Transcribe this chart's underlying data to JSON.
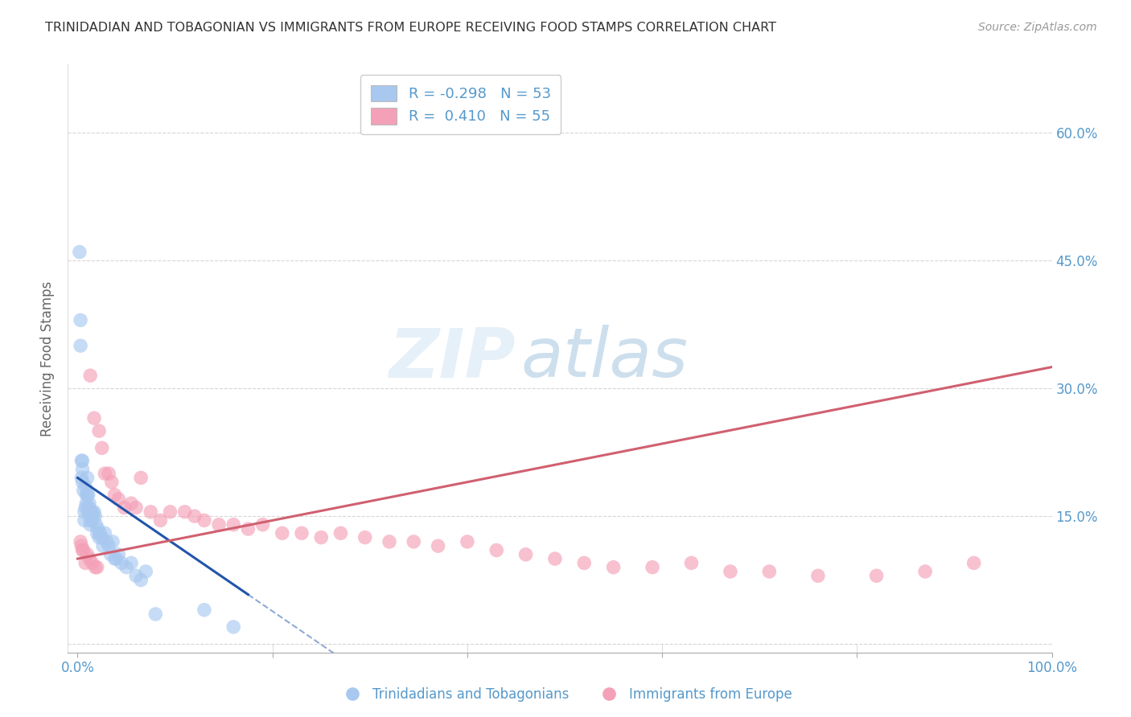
{
  "title": "TRINIDADIAN AND TOBAGONIAN VS IMMIGRANTS FROM EUROPE RECEIVING FOOD STAMPS CORRELATION CHART",
  "source": "Source: ZipAtlas.com",
  "ylabel": "Receiving Food Stamps",
  "legend_label1": "Trinidadians and Tobagonians",
  "legend_label2": "Immigrants from Europe",
  "R1": -0.298,
  "N1": 53,
  "R2": 0.41,
  "N2": 55,
  "xlim": [
    -0.01,
    1.0
  ],
  "ylim": [
    -0.01,
    0.68
  ],
  "xtick_positions": [
    0.0,
    0.2,
    0.4,
    0.6,
    0.8,
    1.0
  ],
  "xtick_labels_show": [
    "0.0%",
    "",
    "",
    "",
    "",
    "100.0%"
  ],
  "ytick_positions": [
    0.0,
    0.15,
    0.3,
    0.45,
    0.6
  ],
  "ytick_labels": [
    "",
    "15.0%",
    "30.0%",
    "45.0%",
    "60.0%"
  ],
  "grid_color": "#cccccc",
  "background_color": "#ffffff",
  "color_blue": "#a8c8f0",
  "color_pink": "#f4a0b8",
  "line_color_blue": "#2255aa",
  "line_color_pink": "#d06070",
  "title_color": "#333333",
  "axis_tick_color": "#5599cc",
  "watermark_zip": "ZIP",
  "watermark_atlas": "atlas",
  "blue_scatter_x": [
    0.002,
    0.003,
    0.003,
    0.004,
    0.004,
    0.005,
    0.005,
    0.005,
    0.006,
    0.007,
    0.007,
    0.008,
    0.008,
    0.009,
    0.009,
    0.01,
    0.01,
    0.011,
    0.011,
    0.012,
    0.012,
    0.013,
    0.013,
    0.014,
    0.015,
    0.015,
    0.016,
    0.017,
    0.018,
    0.019,
    0.02,
    0.021,
    0.022,
    0.023,
    0.025,
    0.026,
    0.028,
    0.03,
    0.032,
    0.034,
    0.036,
    0.038,
    0.04,
    0.042,
    0.045,
    0.05,
    0.055,
    0.06,
    0.065,
    0.07,
    0.08,
    0.13,
    0.16
  ],
  "blue_scatter_y": [
    0.46,
    0.38,
    0.35,
    0.215,
    0.195,
    0.205,
    0.215,
    0.19,
    0.18,
    0.145,
    0.155,
    0.16,
    0.185,
    0.175,
    0.165,
    0.195,
    0.175,
    0.155,
    0.175,
    0.16,
    0.165,
    0.145,
    0.14,
    0.155,
    0.155,
    0.145,
    0.15,
    0.155,
    0.15,
    0.14,
    0.13,
    0.135,
    0.125,
    0.13,
    0.125,
    0.115,
    0.13,
    0.12,
    0.115,
    0.105,
    0.12,
    0.1,
    0.1,
    0.105,
    0.095,
    0.09,
    0.095,
    0.08,
    0.075,
    0.085,
    0.035,
    0.04,
    0.02
  ],
  "pink_scatter_x": [
    0.003,
    0.004,
    0.005,
    0.006,
    0.008,
    0.01,
    0.012,
    0.013,
    0.015,
    0.017,
    0.018,
    0.02,
    0.022,
    0.025,
    0.028,
    0.032,
    0.035,
    0.038,
    0.042,
    0.048,
    0.055,
    0.06,
    0.065,
    0.075,
    0.085,
    0.095,
    0.11,
    0.12,
    0.13,
    0.145,
    0.16,
    0.175,
    0.19,
    0.21,
    0.23,
    0.25,
    0.27,
    0.295,
    0.32,
    0.345,
    0.37,
    0.4,
    0.43,
    0.46,
    0.49,
    0.52,
    0.55,
    0.59,
    0.63,
    0.67,
    0.71,
    0.76,
    0.82,
    0.87,
    0.92
  ],
  "pink_scatter_y": [
    0.12,
    0.115,
    0.11,
    0.11,
    0.095,
    0.105,
    0.1,
    0.315,
    0.095,
    0.265,
    0.09,
    0.09,
    0.25,
    0.23,
    0.2,
    0.2,
    0.19,
    0.175,
    0.17,
    0.16,
    0.165,
    0.16,
    0.195,
    0.155,
    0.145,
    0.155,
    0.155,
    0.15,
    0.145,
    0.14,
    0.14,
    0.135,
    0.14,
    0.13,
    0.13,
    0.125,
    0.13,
    0.125,
    0.12,
    0.12,
    0.115,
    0.12,
    0.11,
    0.105,
    0.1,
    0.095,
    0.09,
    0.09,
    0.095,
    0.085,
    0.085,
    0.08,
    0.08,
    0.085,
    0.095
  ],
  "blue_line_x0": 0.0,
  "blue_line_x1": 0.175,
  "blue_line_y0": 0.195,
  "blue_line_y1": 0.058,
  "pink_line_x0": 0.0,
  "pink_line_x1": 1.0,
  "pink_line_y0": 0.1,
  "pink_line_y1": 0.325
}
